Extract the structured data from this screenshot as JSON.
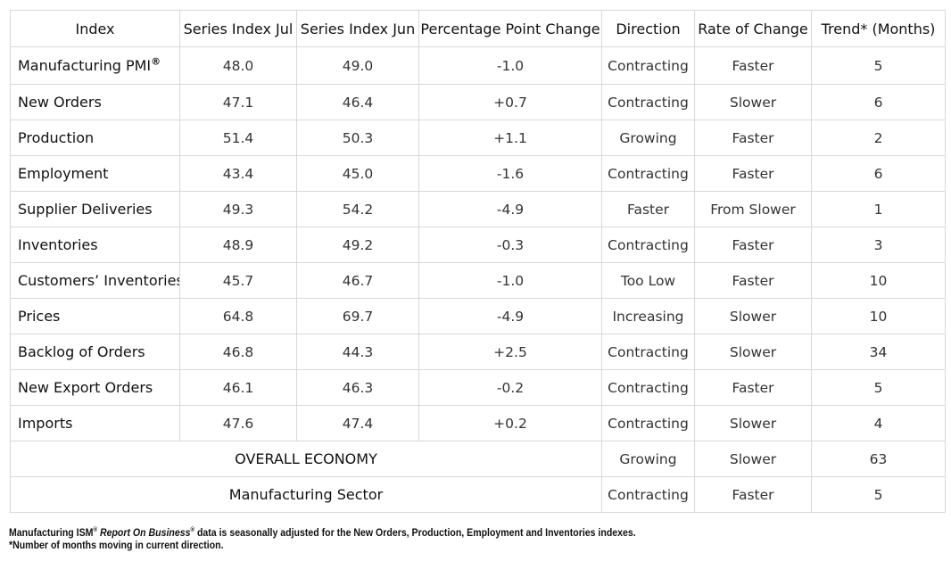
{
  "table": {
    "headers": [
      "Index",
      "Series Index Jul",
      "Series Index Jun",
      "Percentage Point Change",
      "Direction",
      "Rate of Change",
      "Trend* (Months)"
    ],
    "rows": [
      {
        "index": "Manufacturing PMI",
        "index_mark": "®",
        "jul": "48.0",
        "jun": "49.0",
        "change": "-1.0",
        "direction": "Contracting",
        "rate": "Faster",
        "trend": "5"
      },
      {
        "index": "New Orders",
        "index_mark": "",
        "jul": "47.1",
        "jun": "46.4",
        "change": "+0.7",
        "direction": "Contracting",
        "rate": "Slower",
        "trend": "6"
      },
      {
        "index": "Production",
        "index_mark": "",
        "jul": "51.4",
        "jun": "50.3",
        "change": "+1.1",
        "direction": "Growing",
        "rate": "Faster",
        "trend": "2"
      },
      {
        "index": "Employment",
        "index_mark": "",
        "jul": "43.4",
        "jun": "45.0",
        "change": "-1.6",
        "direction": "Contracting",
        "rate": "Faster",
        "trend": "6"
      },
      {
        "index": "Supplier Deliveries",
        "index_mark": "",
        "jul": "49.3",
        "jun": "54.2",
        "change": "-4.9",
        "direction": "Faster",
        "rate": "From Slower",
        "trend": "1"
      },
      {
        "index": "Inventories",
        "index_mark": "",
        "jul": "48.9",
        "jun": "49.2",
        "change": "-0.3",
        "direction": "Contracting",
        "rate": "Faster",
        "trend": "3"
      },
      {
        "index": "Customers’ Inventories",
        "index_mark": "",
        "jul": "45.7",
        "jun": "46.7",
        "change": "-1.0",
        "direction": "Too Low",
        "rate": "Faster",
        "trend": "10"
      },
      {
        "index": "Prices",
        "index_mark": "",
        "jul": "64.8",
        "jun": "69.7",
        "change": "-4.9",
        "direction": "Increasing",
        "rate": "Slower",
        "trend": "10"
      },
      {
        "index": "Backlog of Orders",
        "index_mark": "",
        "jul": "46.8",
        "jun": "44.3",
        "change": "+2.5",
        "direction": "Contracting",
        "rate": "Slower",
        "trend": "34"
      },
      {
        "index": "New Export Orders",
        "index_mark": "",
        "jul": "46.1",
        "jun": "46.3",
        "change": "-0.2",
        "direction": "Contracting",
        "rate": "Faster",
        "trend": "5"
      },
      {
        "index": "Imports",
        "index_mark": "",
        "jul": "47.6",
        "jun": "47.4",
        "change": "+0.2",
        "direction": "Contracting",
        "rate": "Slower",
        "trend": "4"
      }
    ],
    "summary_rows": [
      {
        "label": "OVERALL ECONOMY",
        "direction": "Growing",
        "rate": "Slower",
        "trend": "63"
      },
      {
        "label": "Manufacturing Sector",
        "direction": "Contracting",
        "rate": "Faster",
        "trend": "5"
      }
    ]
  },
  "footnotes": {
    "line1_prefix": "Manufacturing ISM",
    "line1_mark1": "®",
    "line1_italic": " Report On Business",
    "line1_mark2": "®",
    "line1_suffix": " data is seasonally adjusted for the New Orders, Production, Employment and Inventories indexes.",
    "line2": "*Number of months moving in current direction."
  }
}
